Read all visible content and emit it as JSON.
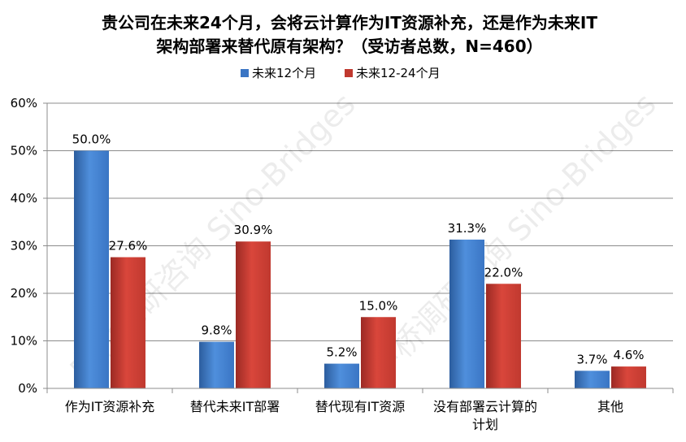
{
  "chart_data": {
    "type": "bar",
    "title_lines": [
      "贵公司在未来24个月，会将云计算作为IT资源补充，还是作为未来IT",
      "架构部署来替代原有架构？（受访者总数，N=460）"
    ],
    "categories": [
      [
        "作为IT资源补充"
      ],
      [
        "替代未来IT部署"
      ],
      [
        "替代现有IT资源"
      ],
      [
        "没有部署云计算的",
        "计划"
      ],
      [
        "其他"
      ]
    ],
    "series": [
      {
        "name": "未来12个月",
        "values": [
          50.0,
          9.8,
          5.2,
          31.3,
          3.7
        ],
        "labels": [
          "50.0%",
          "9.8%",
          "5.2%",
          "31.3%",
          "3.7%"
        ],
        "color": "#3a75c4",
        "color_light": "#4f8fdc",
        "color_dark": "#2c5d9e"
      },
      {
        "name": "未来12-24个月",
        "values": [
          27.6,
          30.9,
          15.0,
          22.0,
          4.6
        ],
        "labels": [
          "27.6%",
          "30.9%",
          "15.0%",
          "22.0%",
          "4.6%"
        ],
        "color": "#c0392f",
        "color_light": "#d9463b",
        "color_dark": "#9b2a24"
      }
    ],
    "ylim": [
      0,
      60
    ],
    "yticks": [
      0,
      10,
      20,
      30,
      40,
      50,
      60
    ],
    "ytick_labels": [
      "0%",
      "10%",
      "20%",
      "30%",
      "40%",
      "50%",
      "60%"
    ],
    "grid": true,
    "legend_position": "top-center",
    "watermarks": [
      "中桥调研咨询 Sino-Bridges",
      "中桥调研咨询 Sino-Bridges"
    ]
  }
}
